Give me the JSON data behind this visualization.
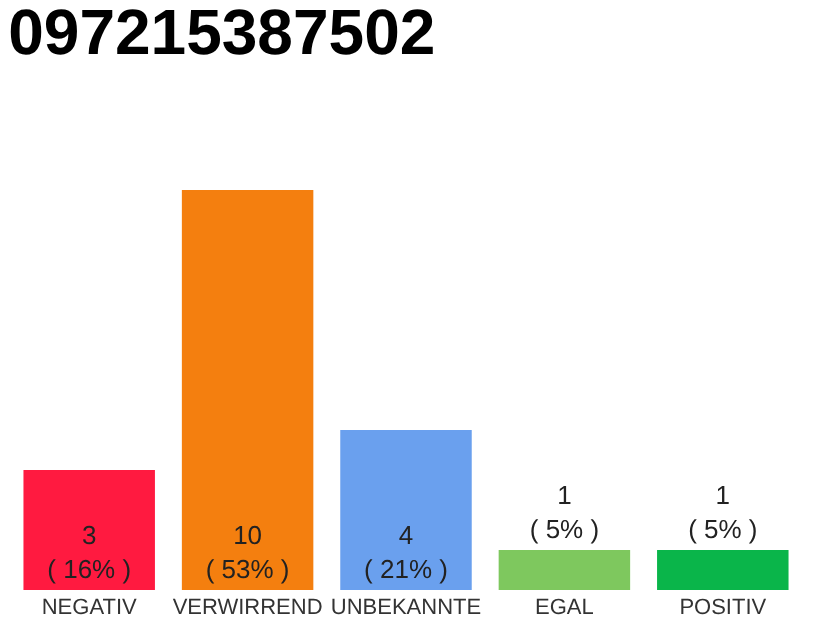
{
  "chart_data": {
    "type": "bar",
    "title": "097215387502",
    "ylim": [
      0,
      10
    ],
    "tick_labels": "x",
    "categories": [
      "NEGATIV",
      "VERWIRREND",
      "UNBEKANNTE",
      "EGAL",
      "POSITIV"
    ],
    "values": [
      3,
      10,
      4,
      1,
      1
    ],
    "colors": [
      "#ff1a40",
      "#f47f0f",
      "#6aa0ee",
      "#7ec85e",
      "#0ab54a"
    ],
    "value_labels": [
      "3\n( 16% )",
      "10\n( 53% )",
      "4\n( 21% )",
      "1\n( 5% )",
      "1\n( 5% )"
    ],
    "legend": false
  }
}
